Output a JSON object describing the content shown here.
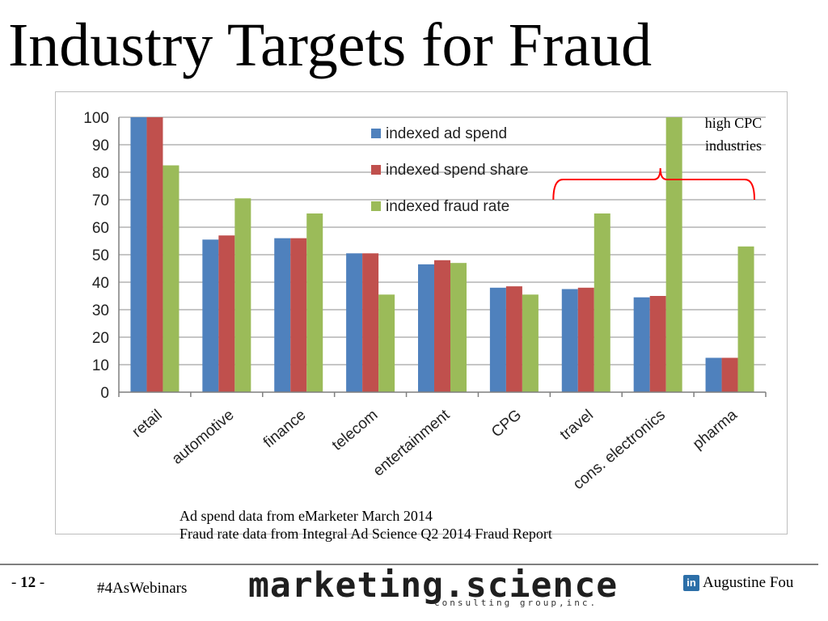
{
  "slide": {
    "title": "Industry Targets for Fraud",
    "source_line_1": "Ad spend data from eMarketer March 2014",
    "source_line_2": "Fraud rate data from Integral Ad Science Q2 2014 Fraud Report"
  },
  "footer": {
    "page_prefix": "- ",
    "page_number": "12",
    "page_suffix": " -",
    "hashtag": "#4AsWebinars",
    "brand_main": "marketing.science",
    "brand_sub": "consulting group,inc.",
    "linkedin_icon_text": "in",
    "author": "Augustine Fou"
  },
  "colors": {
    "series": [
      "#4f81bd",
      "#c0504d",
      "#9bbb59"
    ],
    "annotation": "#ff0000",
    "gridline": "#8c8c8c"
  },
  "chart_data": {
    "type": "bar",
    "categories": [
      "retail",
      "automotive",
      "finance",
      "telecom",
      "entertainment",
      "CPG",
      "travel",
      "cons. electronics",
      "pharma"
    ],
    "series": [
      {
        "name": "indexed ad spend",
        "values": [
          100,
          55.5,
          56,
          50.5,
          46.5,
          38,
          37.5,
          34.5,
          12.5
        ]
      },
      {
        "name": "indexed spend share",
        "values": [
          100,
          57,
          56,
          50.5,
          48,
          38.5,
          38,
          35,
          12.5
        ]
      },
      {
        "name": "indexed fraud rate",
        "values": [
          82.5,
          70.5,
          65,
          35.5,
          47,
          35.5,
          65,
          100,
          53
        ]
      }
    ],
    "ylim": [
      0,
      100
    ],
    "yticks": [
      0,
      10,
      20,
      30,
      40,
      50,
      60,
      70,
      80,
      90,
      100
    ],
    "grid": true,
    "legend": "top-center",
    "annotation": {
      "text_line_1": "high CPC",
      "text_line_2": "industries",
      "bracket_categories": [
        "travel",
        "cons. electronics",
        "pharma"
      ]
    }
  }
}
